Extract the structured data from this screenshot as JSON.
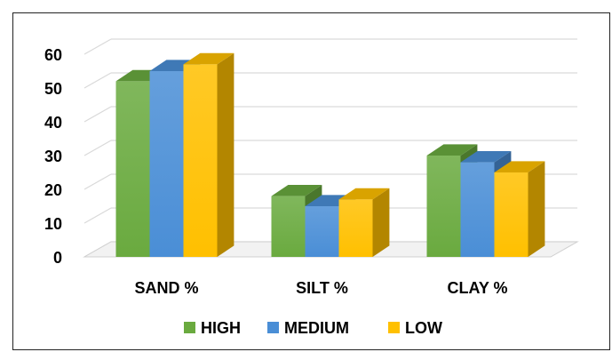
{
  "chart_data": {
    "type": "bar",
    "categories": [
      "SAND %",
      "SILT %",
      "CLAY %"
    ],
    "series": [
      {
        "name": "HIGH",
        "values": [
          52,
          18,
          30
        ],
        "color": "#6aaa3f"
      },
      {
        "name": "MEDIUM",
        "values": [
          55,
          15,
          28
        ],
        "color": "#4a8ed6"
      },
      {
        "name": "LOW",
        "values": [
          57,
          17,
          25
        ],
        "color": "#ffc000"
      }
    ],
    "ylim": [
      0,
      60
    ],
    "yticks": [
      0,
      10,
      20,
      30,
      40,
      50,
      60
    ],
    "grid": true,
    "legend": "bottom",
    "style": "3d-clustered-column"
  }
}
